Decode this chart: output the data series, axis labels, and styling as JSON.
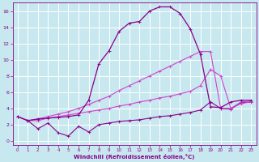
{
  "xlabel": "Windchill (Refroidissement éolien,°C)",
  "xlim": [
    -0.5,
    23.5
  ],
  "ylim": [
    -0.5,
    17.0
  ],
  "yticks": [
    0,
    2,
    4,
    6,
    8,
    10,
    12,
    14,
    16
  ],
  "xticks": [
    0,
    1,
    2,
    3,
    4,
    5,
    6,
    7,
    8,
    9,
    10,
    11,
    12,
    13,
    14,
    15,
    16,
    17,
    18,
    19,
    20,
    21,
    22,
    23
  ],
  "bg_color": "#c8e8f0",
  "grid_color": "#ffffff",
  "curves": [
    {
      "x": [
        0,
        1,
        2,
        3,
        4,
        5,
        6,
        7,
        8,
        9,
        10,
        11,
        12,
        13,
        14,
        15,
        16,
        17,
        18,
        19,
        20,
        21,
        22,
        23
      ],
      "y": [
        3.0,
        2.5,
        1.5,
        2.2,
        1.0,
        0.6,
        1.8,
        1.1,
        2.0,
        2.2,
        2.4,
        2.5,
        2.6,
        2.8,
        3.0,
        3.1,
        3.3,
        3.5,
        3.8,
        4.8,
        4.0,
        3.9,
        4.7,
        4.8
      ],
      "color": "#880088",
      "lw": 0.8,
      "marker": "+"
    },
    {
      "x": [
        0,
        1,
        2,
        3,
        4,
        5,
        6,
        7,
        8,
        9,
        10,
        11,
        12,
        13,
        14,
        15,
        16,
        17,
        18,
        19,
        20,
        21,
        22,
        23
      ],
      "y": [
        3.0,
        2.5,
        2.5,
        2.8,
        3.0,
        3.2,
        3.4,
        3.6,
        3.8,
        4.0,
        4.3,
        4.5,
        4.8,
        5.0,
        5.3,
        5.5,
        5.8,
        6.1,
        6.8,
        8.8,
        8.0,
        4.0,
        4.6,
        4.8
      ],
      "color": "#cc44cc",
      "lw": 0.8,
      "marker": "+"
    },
    {
      "x": [
        0,
        1,
        2,
        3,
        4,
        5,
        6,
        7,
        8,
        9,
        10,
        11,
        12,
        13,
        14,
        15,
        16,
        17,
        18,
        19,
        20,
        21,
        22,
        23
      ],
      "y": [
        3.0,
        2.5,
        2.7,
        3.0,
        3.3,
        3.6,
        4.0,
        4.5,
        5.0,
        5.5,
        6.2,
        6.8,
        7.4,
        8.0,
        8.6,
        9.2,
        9.8,
        10.4,
        11.0,
        11.0,
        4.0,
        4.0,
        4.8,
        4.9
      ],
      "color": "#cc44cc",
      "lw": 0.8,
      "marker": "+"
    },
    {
      "x": [
        0,
        1,
        2,
        3,
        4,
        5,
        6,
        7,
        8,
        9,
        10,
        11,
        12,
        13,
        14,
        15,
        16,
        17,
        18,
        19,
        20,
        21,
        22,
        23
      ],
      "y": [
        3.0,
        2.5,
        2.7,
        2.8,
        2.9,
        3.0,
        3.2,
        5.0,
        9.5,
        11.1,
        13.5,
        14.5,
        14.7,
        16.0,
        16.5,
        16.5,
        15.7,
        13.8,
        10.7,
        4.2,
        4.1,
        4.8,
        5.0,
        5.0
      ],
      "color": "#880088",
      "lw": 0.9,
      "marker": "+"
    }
  ]
}
